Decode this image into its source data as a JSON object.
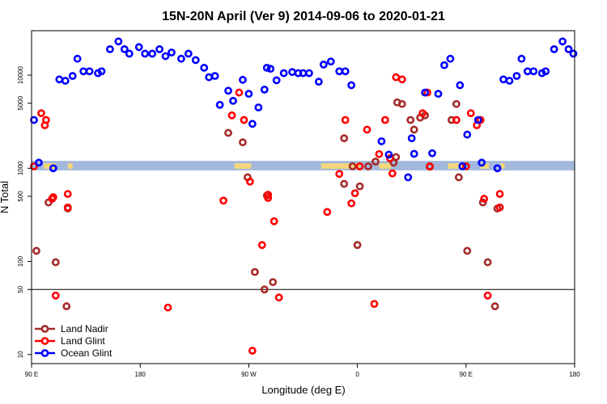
{
  "chart_data": {
    "type": "scatter",
    "title": "15N-20N April (Ver 9)   2014-09-06 to 2020-01-21",
    "xlabel": "Longitude (deg E)",
    "ylabel": "N Total",
    "x_scale": "longitude, 90 E to 90 E then to 180 (wraps 450 degrees)",
    "y_scale": "log",
    "xlim": [
      90,
      540
    ],
    "ylim": [
      8,
      30000
    ],
    "x_ticks": [
      {
        "value": 90,
        "label": "90 E"
      },
      {
        "value": 180,
        "label": "180"
      },
      {
        "value": 270,
        "label": "90 W"
      },
      {
        "value": 360,
        "label": "0"
      },
      {
        "value": 450,
        "label": "90 E"
      },
      {
        "value": 540,
        "label": "180"
      }
    ],
    "y_ticks": [
      {
        "value": 10,
        "label": "10"
      },
      {
        "value": 50,
        "label": "50"
      },
      {
        "value": 100,
        "label": "100"
      },
      {
        "value": 500,
        "label": "500"
      },
      {
        "value": 1000,
        "label": "1000"
      },
      {
        "value": 5000,
        "label": "5000"
      },
      {
        "value": 10000,
        "label": "10000"
      }
    ],
    "reference_line": 50,
    "band": {
      "y_low": 950,
      "y_high": 1200,
      "color": "#a3b8dc",
      "land_color": "#f3d77a"
    },
    "legend_position": "bottom-left",
    "grid": false,
    "series": [
      {
        "name": "Land Nadir",
        "color": "#a52a2a",
        "points": [
          [
            94,
            130
          ],
          [
            104,
            430
          ],
          [
            110,
            98
          ],
          [
            119,
            33
          ],
          [
            120,
            370
          ],
          [
            253,
            2400
          ],
          [
            265,
            1900
          ],
          [
            269,
            800
          ],
          [
            275,
            77
          ],
          [
            283,
            50
          ],
          [
            285,
            510
          ],
          [
            290,
            60
          ],
          [
            349,
            2100
          ],
          [
            349,
            680
          ],
          [
            356,
            1050
          ],
          [
            360,
            150
          ],
          [
            362,
            640
          ],
          [
            369,
            1050
          ],
          [
            375,
            1180
          ],
          [
            390,
            1150
          ],
          [
            392,
            1320
          ],
          [
            393,
            5100
          ],
          [
            397,
            4900
          ],
          [
            404,
            3300
          ],
          [
            407,
            2600
          ],
          [
            412,
            3500
          ],
          [
            416,
            3700
          ],
          [
            420,
            1040
          ],
          [
            438,
            3300
          ],
          [
            442,
            4900
          ],
          [
            444,
            800
          ],
          [
            451,
            130
          ],
          [
            461,
            3300
          ],
          [
            464,
            430
          ],
          [
            468,
            98
          ],
          [
            474,
            33
          ],
          [
            476,
            370
          ]
        ]
      },
      {
        "name": "Land Glint",
        "color": "#ff0000",
        "points": [
          [
            92,
            1050
          ],
          [
            98,
            3900
          ],
          [
            101,
            2900
          ],
          [
            102,
            3300
          ],
          [
            107,
            470
          ],
          [
            108,
            490
          ],
          [
            110,
            43
          ],
          [
            120,
            530
          ],
          [
            120,
            380
          ],
          [
            203,
            32
          ],
          [
            249,
            450
          ],
          [
            256,
            3700
          ],
          [
            262,
            6500
          ],
          [
            266,
            3300
          ],
          [
            271,
            720
          ],
          [
            273,
            11
          ],
          [
            281,
            150
          ],
          [
            286,
            480
          ],
          [
            286,
            520
          ],
          [
            291,
            270
          ],
          [
            295,
            41
          ],
          [
            335,
            340
          ],
          [
            345,
            870
          ],
          [
            350,
            3300
          ],
          [
            355,
            420
          ],
          [
            358,
            540
          ],
          [
            362,
            1050
          ],
          [
            368,
            2600
          ],
          [
            374,
            35
          ],
          [
            378,
            1420
          ],
          [
            383,
            3300
          ],
          [
            387,
            1280
          ],
          [
            389,
            880
          ],
          [
            392,
            9500
          ],
          [
            397,
            9000
          ],
          [
            414,
            3900
          ],
          [
            418,
            6500
          ],
          [
            420,
            1050
          ],
          [
            442,
            3300
          ],
          [
            450,
            1050
          ],
          [
            454,
            3900
          ],
          [
            459,
            2900
          ],
          [
            462,
            3300
          ],
          [
            465,
            470
          ],
          [
            468,
            43
          ],
          [
            478,
            530
          ],
          [
            478,
            380
          ]
        ]
      },
      {
        "name": "Ocean Glint",
        "color": "#0000ff",
        "points": [
          [
            92,
            3300
          ],
          [
            96,
            1150
          ],
          [
            108,
            1000
          ],
          [
            113,
            9000
          ],
          [
            118,
            8700
          ],
          [
            124,
            9800
          ],
          [
            128,
            15000
          ],
          [
            133,
            11000
          ],
          [
            138,
            11000
          ],
          [
            145,
            10500
          ],
          [
            148,
            11000
          ],
          [
            155,
            19000
          ],
          [
            162,
            23000
          ],
          [
            167,
            19000
          ],
          [
            171,
            17000
          ],
          [
            179,
            20000
          ],
          [
            184,
            17000
          ],
          [
            190,
            17000
          ],
          [
            196,
            19000
          ],
          [
            201,
            16000
          ],
          [
            206,
            17500
          ],
          [
            214,
            15000
          ],
          [
            220,
            17000
          ],
          [
            226,
            14500
          ],
          [
            233,
            12000
          ],
          [
            237,
            9500
          ],
          [
            242,
            9800
          ],
          [
            246,
            4800
          ],
          [
            253,
            6800
          ],
          [
            257,
            5300
          ],
          [
            265,
            8900
          ],
          [
            270,
            6300
          ],
          [
            273,
            3000
          ],
          [
            278,
            4500
          ],
          [
            283,
            7000
          ],
          [
            285,
            12000
          ],
          [
            288,
            11700
          ],
          [
            293,
            8800
          ],
          [
            299,
            10500
          ],
          [
            306,
            10800
          ],
          [
            311,
            10500
          ],
          [
            315,
            10500
          ],
          [
            320,
            10500
          ],
          [
            328,
            8500
          ],
          [
            332,
            13000
          ],
          [
            338,
            14000
          ],
          [
            345,
            11000
          ],
          [
            350,
            11000
          ],
          [
            355,
            7800
          ],
          [
            380,
            1950
          ],
          [
            386,
            1400
          ],
          [
            402,
            800
          ],
          [
            405,
            2100
          ],
          [
            407,
            1430
          ],
          [
            416,
            6500
          ],
          [
            422,
            1450
          ],
          [
            427,
            6300
          ],
          [
            432,
            12800
          ],
          [
            437,
            15000
          ],
          [
            445,
            7800
          ],
          [
            447,
            1050
          ],
          [
            451,
            2300
          ],
          [
            460,
            3300
          ],
          [
            463,
            1150
          ],
          [
            476,
            1000
          ],
          [
            481,
            9000
          ],
          [
            486,
            8700
          ],
          [
            492,
            9800
          ],
          [
            496,
            15000
          ],
          [
            501,
            11000
          ],
          [
            506,
            11000
          ],
          [
            513,
            10500
          ],
          [
            516,
            11000
          ],
          [
            523,
            19000
          ],
          [
            530,
            23000
          ],
          [
            535,
            19000
          ],
          [
            539,
            17000
          ]
        ]
      }
    ]
  }
}
